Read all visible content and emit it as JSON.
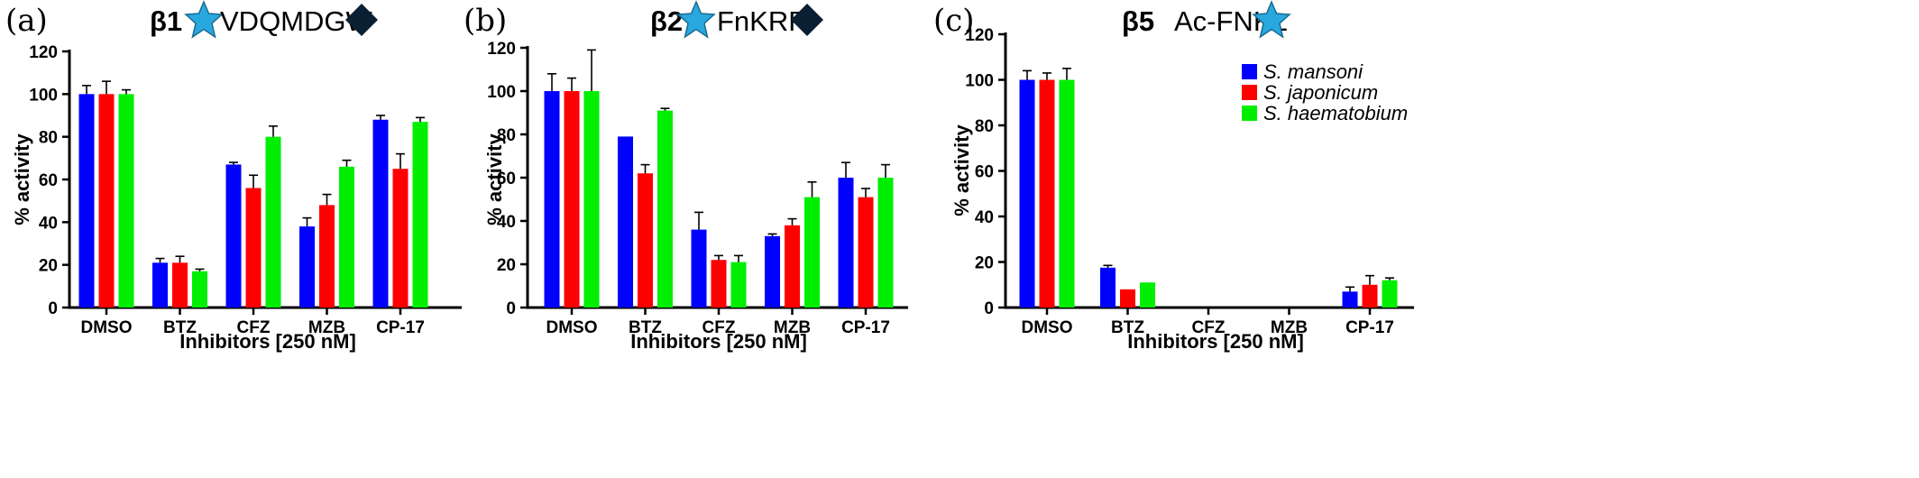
{
  "colors": {
    "s_mansoni": "#0000ff",
    "s_japonicum": "#ff0000",
    "s_haematobium": "#00ee00",
    "star": "#29a8e0",
    "diamond": "#0b1f33"
  },
  "legend": {
    "entries": [
      "S. mansoni",
      "S. japonicum",
      "S. haematobium"
    ]
  },
  "chart_data": [
    {
      "type": "bar",
      "panel_label": "(a)",
      "title_bold": "β1",
      "substrate": "VDQMDGW",
      "substrate_markers": [
        "star-icon",
        "diamond-icon"
      ],
      "xlabel": "Inhibitors [250 nM]",
      "ylabel": "% activity",
      "ylim": [
        0,
        120
      ],
      "yticks": [
        "0",
        "20",
        "40",
        "60",
        "80",
        "100",
        "120"
      ],
      "categories": [
        "DMSO",
        "BTZ",
        "CFZ",
        "MZB",
        "CP-17"
      ],
      "series": [
        {
          "name": "S. mansoni",
          "values": [
            100,
            21,
            67,
            38,
            88
          ],
          "errors": [
            4,
            2,
            1,
            4,
            2
          ]
        },
        {
          "name": "S. japonicum",
          "values": [
            100,
            21,
            56,
            48,
            65
          ],
          "errors": [
            6,
            3,
            6,
            5,
            7
          ]
        },
        {
          "name": "S. haematobium",
          "values": [
            100,
            17,
            80,
            66,
            87
          ],
          "errors": [
            2,
            1,
            5,
            3,
            2
          ]
        }
      ],
      "grid": false
    },
    {
      "type": "bar",
      "panel_label": "(b)",
      "title_bold": "β2",
      "substrate": "FnKRR",
      "substrate_markers": [
        "star-icon",
        "diamond-icon"
      ],
      "xlabel": "Inhibitors [250 nM]",
      "ylabel": "% activity",
      "ylim": [
        0,
        120
      ],
      "yticks": [
        "0",
        "20",
        "40",
        "60",
        "80",
        "100",
        "120"
      ],
      "categories": [
        "DMSO",
        "BTZ",
        "CFZ",
        "MZB",
        "CP-17"
      ],
      "series": [
        {
          "name": "S. mansoni",
          "values": [
            100,
            79,
            36,
            33,
            60
          ],
          "errors": [
            8,
            0,
            8,
            1,
            7
          ]
        },
        {
          "name": "S. japonicum",
          "values": [
            100,
            62,
            22,
            38,
            51
          ],
          "errors": [
            6,
            4,
            2,
            3,
            4
          ]
        },
        {
          "name": "S. haematobium",
          "values": [
            100,
            91,
            21,
            51,
            60
          ],
          "errors": [
            19,
            1,
            3,
            7,
            6
          ]
        }
      ],
      "grid": false
    },
    {
      "type": "bar",
      "panel_label": "(c)",
      "title_bold": "β5",
      "substrate": "Ac-FNKL",
      "substrate_markers": [
        "star-icon"
      ],
      "xlabel": "Inhibitors [250 nM]",
      "ylabel": "% activity",
      "ylim": [
        0,
        120
      ],
      "yticks": [
        "0",
        "20",
        "40",
        "60",
        "80",
        "100",
        "120"
      ],
      "categories": [
        "DMSO",
        "BTZ",
        "CFZ",
        "MZB",
        "CP-17"
      ],
      "series": [
        {
          "name": "S. mansoni",
          "values": [
            100,
            17.5,
            0,
            0,
            7
          ],
          "errors": [
            4,
            1,
            0,
            0,
            2
          ]
        },
        {
          "name": "S. japonicum",
          "values": [
            100,
            8,
            0,
            0,
            10
          ],
          "errors": [
            3,
            0,
            0,
            0,
            4
          ]
        },
        {
          "name": "S. haematobium",
          "values": [
            100,
            11,
            0,
            0,
            12
          ],
          "errors": [
            5,
            0,
            0,
            0,
            1
          ]
        }
      ],
      "legend_position": "top-right",
      "grid": false
    }
  ]
}
